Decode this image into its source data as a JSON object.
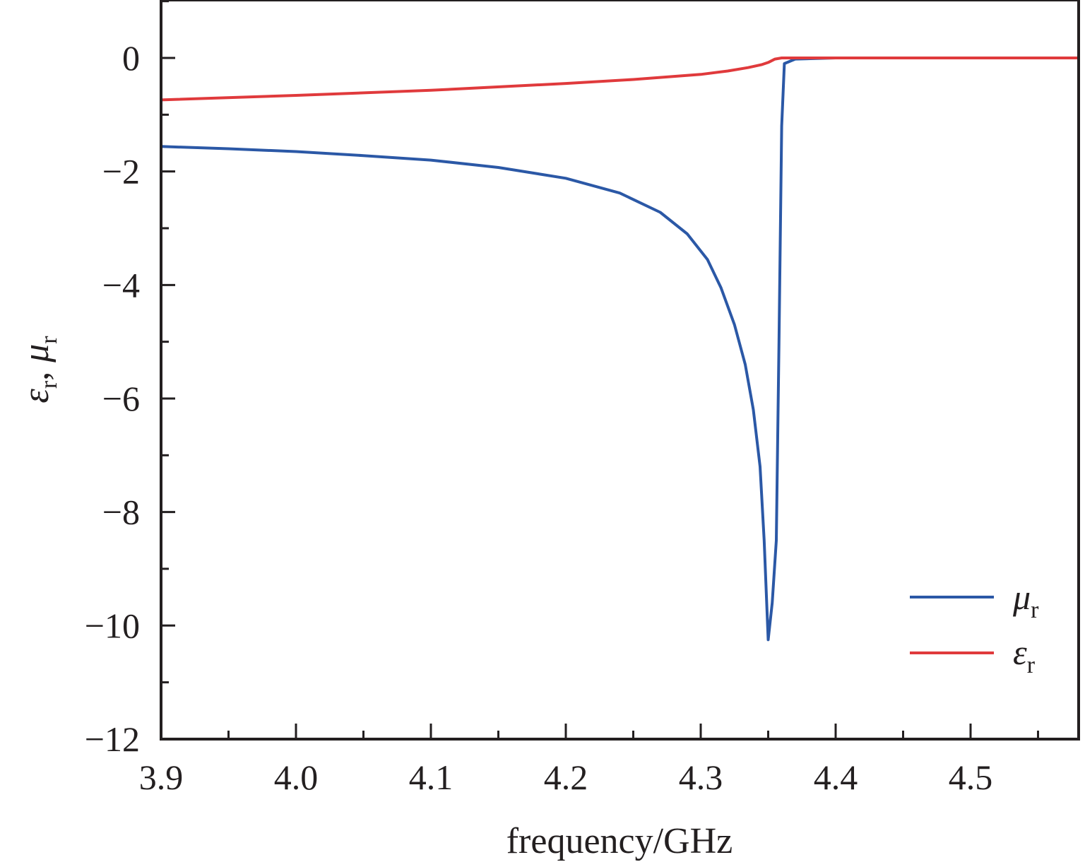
{
  "chart_data": {
    "type": "line",
    "title": "",
    "xlabel": "frequency/GHz",
    "ylabel": {
      "part1": "ε",
      "sub1": "r",
      "sep": ", ",
      "part2": "μ",
      "sub2": "r"
    },
    "xlim": [
      3.9,
      4.58
    ],
    "ylim": [
      -12,
      1
    ],
    "x_ticks": [
      "3.9",
      "4.0",
      "4.1",
      "4.2",
      "4.3",
      "4.4",
      "4.5"
    ],
    "x_tick_values": [
      3.9,
      4.0,
      4.1,
      4.2,
      4.3,
      4.4,
      4.5
    ],
    "y_ticks": [
      "0",
      "−2",
      "−4",
      "−6",
      "−8",
      "−10",
      "−12"
    ],
    "y_tick_values": [
      0,
      -2,
      -4,
      -6,
      -8,
      -10,
      -12
    ],
    "grid": false,
    "legend_position": "bottom-right",
    "series": [
      {
        "name": "μ",
        "name_sub": "r",
        "color": "#2b58a6",
        "points": [
          [
            3.9,
            -1.56
          ],
          [
            3.95,
            -1.6
          ],
          [
            4.0,
            -1.65
          ],
          [
            4.05,
            -1.72
          ],
          [
            4.1,
            -1.8
          ],
          [
            4.15,
            -1.93
          ],
          [
            4.2,
            -2.12
          ],
          [
            4.24,
            -2.38
          ],
          [
            4.27,
            -2.72
          ],
          [
            4.29,
            -3.1
          ],
          [
            4.305,
            -3.55
          ],
          [
            4.315,
            -4.05
          ],
          [
            4.325,
            -4.7
          ],
          [
            4.333,
            -5.4
          ],
          [
            4.339,
            -6.2
          ],
          [
            4.344,
            -7.2
          ],
          [
            4.347,
            -8.5
          ],
          [
            4.35,
            -10.25
          ],
          [
            4.353,
            -9.6
          ],
          [
            4.356,
            -8.5
          ],
          [
            4.358,
            -5.0
          ],
          [
            4.36,
            -1.2
          ],
          [
            4.362,
            -0.1
          ],
          [
            4.37,
            -0.02
          ],
          [
            4.4,
            0
          ],
          [
            4.5,
            0
          ],
          [
            4.58,
            0
          ]
        ]
      },
      {
        "name": "ε",
        "name_sub": "r",
        "color": "#e03a3c",
        "points": [
          [
            3.9,
            -0.74
          ],
          [
            4.0,
            -0.66
          ],
          [
            4.1,
            -0.57
          ],
          [
            4.2,
            -0.45
          ],
          [
            4.25,
            -0.38
          ],
          [
            4.3,
            -0.29
          ],
          [
            4.32,
            -0.23
          ],
          [
            4.335,
            -0.17
          ],
          [
            4.345,
            -0.12
          ],
          [
            4.35,
            -0.08
          ],
          [
            4.355,
            -0.02
          ],
          [
            4.36,
            0
          ],
          [
            4.4,
            0
          ],
          [
            4.5,
            0
          ],
          [
            4.58,
            0
          ]
        ]
      }
    ]
  }
}
